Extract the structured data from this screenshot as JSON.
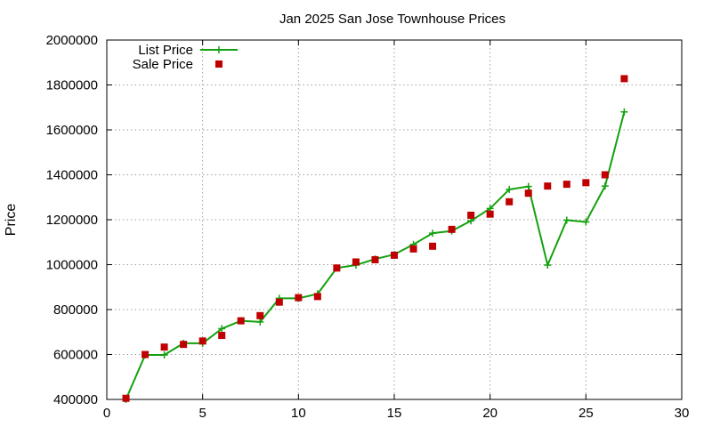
{
  "chart_data": {
    "type": "line",
    "title": "Jan 2025 San Jose Townhouse Prices",
    "xlabel": "",
    "ylabel": "Price",
    "xlim": [
      0,
      30
    ],
    "ylim": [
      400000,
      2000000
    ],
    "x_ticks": [
      0,
      5,
      10,
      15,
      20,
      25,
      30
    ],
    "y_ticks": [
      400000,
      600000,
      800000,
      1000000,
      1200000,
      1400000,
      1600000,
      1800000,
      2000000
    ],
    "grid": true,
    "legend_position": "top-left",
    "series": [
      {
        "name": "List Price",
        "style": "line+cross",
        "color": "#13a10e",
        "x": [
          1,
          2,
          3,
          4,
          5,
          6,
          7,
          8,
          9,
          10,
          11,
          12,
          13,
          14,
          15,
          16,
          17,
          18,
          19,
          20,
          21,
          22,
          23,
          24,
          25,
          26,
          27
        ],
        "y": [
          400000,
          598000,
          598000,
          650000,
          650000,
          715000,
          750000,
          745000,
          850000,
          850000,
          870000,
          985000,
          998000,
          1025000,
          1045000,
          1090000,
          1140000,
          1150000,
          1195000,
          1250000,
          1335000,
          1348000,
          998000,
          1198000,
          1190000,
          1350000,
          1680000
        ]
      },
      {
        "name": "Sale Price",
        "style": "square",
        "color": "#c00000",
        "x": [
          1,
          2,
          3,
          4,
          5,
          6,
          7,
          8,
          9,
          10,
          11,
          12,
          13,
          14,
          15,
          16,
          17,
          18,
          19,
          20,
          21,
          22,
          23,
          24,
          25,
          26,
          27
        ],
        "y": [
          405000,
          600000,
          633000,
          645000,
          660000,
          685000,
          750000,
          773000,
          833000,
          853000,
          858000,
          985000,
          1012000,
          1022000,
          1042000,
          1070000,
          1082000,
          1157000,
          1220000,
          1225000,
          1280000,
          1318000,
          1350000,
          1358000,
          1365000,
          1400000,
          1828000
        ]
      }
    ]
  }
}
